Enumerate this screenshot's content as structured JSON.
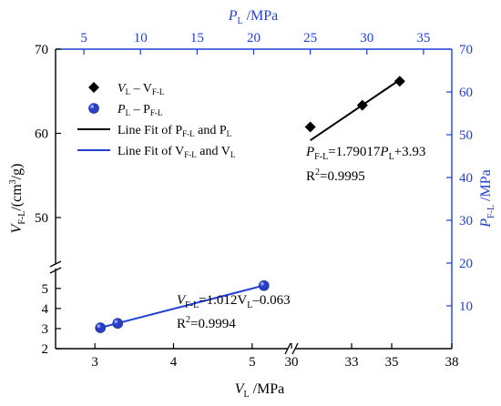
{
  "chart_data": {
    "type": "scatter",
    "axes": {
      "bottom": {
        "label": "V",
        "label_sub": "L",
        "label_unit": " /MPa",
        "segments": [
          {
            "range": [
              2.5,
              5.5
            ],
            "ticks": [
              "3",
              "4",
              "5"
            ]
          },
          {
            "range": [
              30,
              38
            ],
            "ticks": [
              "30",
              "33",
              "35",
              "38"
            ]
          }
        ]
      },
      "top": {
        "label": "P",
        "label_sub": "L",
        "label_unit": " /MPa",
        "range": [
          2.5,
          37.5
        ],
        "ticks": [
          "5",
          "10",
          "15",
          "20",
          "25",
          "30",
          "35"
        ]
      },
      "left": {
        "label": "V",
        "label_sub": "F-L",
        "label_unit": "/(cm",
        "label_sup": "3",
        "label_tail": "/g)",
        "segments": [
          {
            "range": [
              2,
              5.9
            ],
            "ticks": [
              "2",
              "3",
              "4",
              "5"
            ]
          },
          {
            "range": [
              44.7,
              70
            ],
            "ticks": [
              "50",
              "60",
              "70"
            ]
          }
        ]
      },
      "right": {
        "label": "P",
        "label_sub": "F-L",
        "label_unit": " /MPa",
        "range": [
          0,
          70
        ],
        "ticks": [
          "10",
          "20",
          "30",
          "40",
          "50",
          "60",
          "70"
        ]
      }
    },
    "series": [
      {
        "name": "V",
        "name_sub": "L",
        "name_mid": " – V",
        "name_sub2": "F-L",
        "marker": "diamond",
        "color": "#000000",
        "axes": "top-right",
        "points": [
          {
            "x": 25.0,
            "y": 51.8
          },
          {
            "x": 29.6,
            "y": 56.9
          },
          {
            "x": 32.9,
            "y": 62.5
          }
        ]
      },
      {
        "name": "P",
        "name_sub": "L",
        "name_mid": " – P",
        "name_sub2": "F-L",
        "marker": "circle",
        "color": "#1f3fd6",
        "axes": "bottom-left",
        "points": [
          {
            "x": 3.07,
            "y": 3.04
          },
          {
            "x": 3.29,
            "y": 3.26
          },
          {
            "x": 5.15,
            "y": 5.14
          }
        ]
      }
    ],
    "fits": [
      {
        "name": "Line Fit of P",
        "name_sub": "F-L",
        "name_mid": " and P",
        "name_sub2": "L",
        "color": "#000000",
        "x_range": [
          25.0,
          33.0
        ],
        "slope": 1.79017,
        "intercept": 3.93,
        "eq_lhs": "P",
        "eq_lhs_sub": "F-L",
        "eq_mid": "=1.79017",
        "eq_var": "P",
        "eq_var_sub": "L",
        "eq_tail": "+3.93",
        "r2_label": "R",
        "r2_sup": "2",
        "r2_value": "=0.9995"
      },
      {
        "name": "Line Fit of V",
        "name_sub": "F-L",
        "name_mid": " and V",
        "name_sub2": "L",
        "color": "#1f3fd6",
        "x_range": [
          3.07,
          5.15
        ],
        "slope": 1.012,
        "intercept": -0.063,
        "eq_lhs": "V",
        "eq_lhs_sub": "F-L",
        "eq_mid": "=1.012V",
        "eq_var_sub": "L",
        "eq_tail": "–0.063",
        "r2_label": "R",
        "r2_sup": "2",
        "r2_value": "=0.9994"
      }
    ],
    "legend": "top-left",
    "grid": false
  }
}
